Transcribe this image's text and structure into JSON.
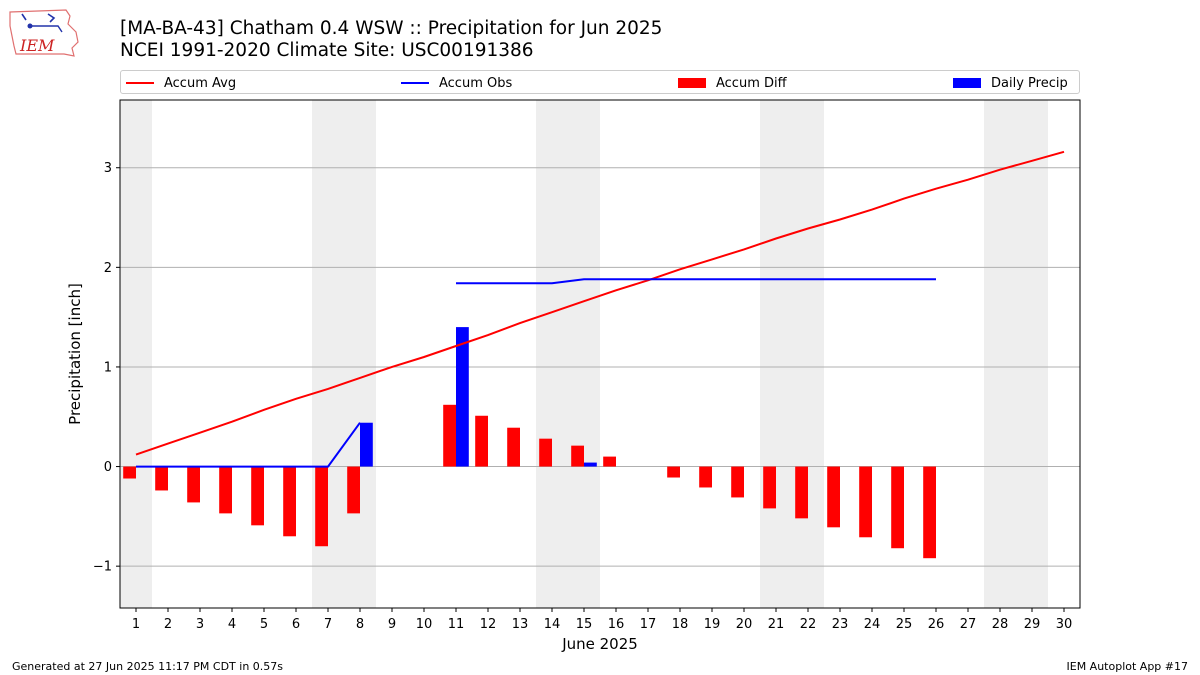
{
  "header": {
    "title_line1": "[MA-BA-43] Chatham 0.4 WSW :: Precipitation for Jun 2025",
    "title_line2": "NCEI 1991-2020 Climate Site: USC00191386",
    "logo_text": "IEM"
  },
  "footer": {
    "generated": "Generated at 27 Jun 2025 11:17 PM CDT in 0.57s",
    "app": "IEM Autoplot App #17"
  },
  "legend": {
    "accum_avg": "Accum Avg",
    "accum_obs": "Accum Obs",
    "accum_diff": "Accum Diff",
    "daily_precip": "Daily Precip"
  },
  "colors": {
    "accum_avg": "#ff0000",
    "accum_obs": "#0000ff",
    "accum_diff": "#ff0000",
    "daily_precip": "#0000ff",
    "weekend_shade": "#eeeeee",
    "grid": "#b0b0b0"
  },
  "chart_data": {
    "type": "bar",
    "xlabel": "June 2025",
    "ylabel": "Precipitation [inch]",
    "xlim": [
      0.5,
      30.5
    ],
    "ylim": [
      -1.42,
      3.68
    ],
    "yticks": [
      -1,
      0,
      1,
      2,
      3
    ],
    "ytick_labels": [
      "−1",
      "0",
      "1",
      "2",
      "3"
    ],
    "days": [
      1,
      2,
      3,
      4,
      5,
      6,
      7,
      8,
      9,
      10,
      11,
      12,
      13,
      14,
      15,
      16,
      17,
      18,
      19,
      20,
      21,
      22,
      23,
      24,
      25,
      26,
      27,
      28,
      29,
      30
    ],
    "weekend_ranges": [
      [
        0.5,
        1.5
      ],
      [
        6.5,
        8.5
      ],
      [
        13.5,
        15.5
      ],
      [
        20.5,
        22.5
      ],
      [
        27.5,
        29.5
      ]
    ],
    "grid": "horizontal",
    "legend_position": "top",
    "series": [
      {
        "name": "Accum Avg",
        "type": "line",
        "x": [
          1,
          2,
          3,
          4,
          5,
          6,
          7,
          8,
          9,
          10,
          11,
          12,
          13,
          14,
          15,
          16,
          17,
          18,
          19,
          20,
          21,
          22,
          23,
          24,
          25,
          26,
          27,
          28,
          29,
          30
        ],
        "values": [
          0.12,
          0.23,
          0.34,
          0.45,
          0.57,
          0.68,
          0.78,
          0.89,
          1.0,
          1.1,
          1.21,
          1.32,
          1.44,
          1.55,
          1.66,
          1.77,
          1.87,
          1.98,
          2.08,
          2.18,
          2.29,
          2.39,
          2.48,
          2.58,
          2.69,
          2.79,
          2.88,
          2.98,
          3.07,
          3.16
        ]
      },
      {
        "name": "Accum Obs",
        "type": "line",
        "x": [
          1,
          2,
          3,
          4,
          5,
          6,
          7,
          8,
          11,
          12,
          13,
          14,
          15,
          16,
          17,
          18,
          19,
          20,
          21,
          22,
          23,
          24,
          25,
          26
        ],
        "values": [
          0,
          0,
          0,
          0,
          0,
          0,
          0,
          0.44,
          1.84,
          1.84,
          1.84,
          1.84,
          1.88,
          1.88,
          1.88,
          1.88,
          1.88,
          1.88,
          1.88,
          1.88,
          1.88,
          1.88,
          1.88,
          1.88
        ]
      },
      {
        "name": "Accum Diff",
        "type": "bar",
        "x": [
          1,
          2,
          3,
          4,
          5,
          6,
          7,
          8,
          11,
          12,
          13,
          14,
          15,
          16,
          18,
          19,
          20,
          21,
          22,
          23,
          24,
          25,
          26
        ],
        "values": [
          -0.12,
          -0.24,
          -0.36,
          -0.47,
          -0.59,
          -0.7,
          -0.8,
          -0.47,
          0.62,
          0.51,
          0.39,
          0.28,
          0.21,
          0.1,
          -0.11,
          -0.21,
          -0.31,
          -0.42,
          -0.52,
          -0.61,
          -0.71,
          -0.82,
          -0.92
        ]
      },
      {
        "name": "Daily Precip",
        "type": "bar",
        "x": [
          8,
          11,
          15
        ],
        "values": [
          0.44,
          1.4,
          0.04
        ]
      }
    ]
  }
}
